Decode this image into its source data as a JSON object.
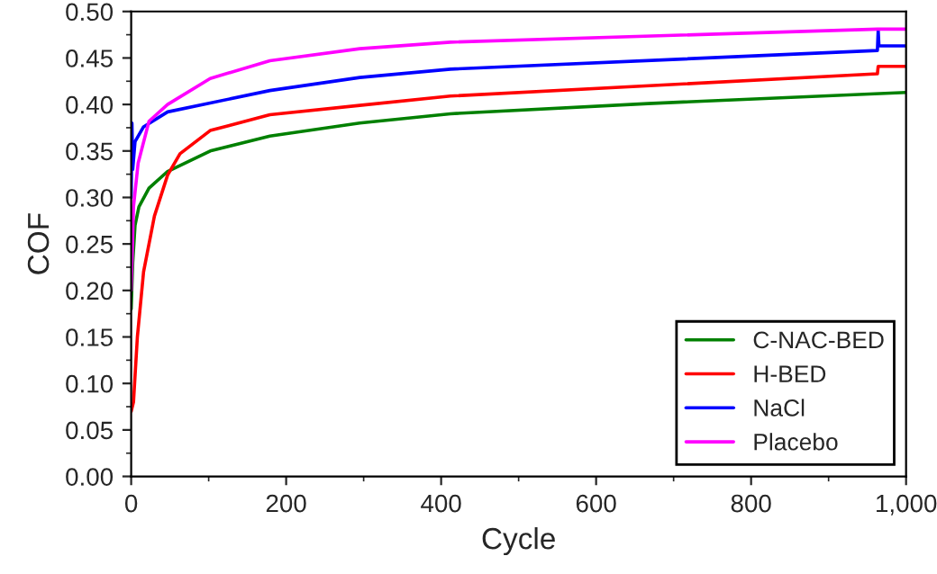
{
  "chart_data": {
    "type": "line",
    "xlabel": "Cycle",
    "ylabel": "COF",
    "xlim": [
      0,
      1000
    ],
    "xticks": [
      0,
      200,
      400,
      600,
      {
        "value": 800,
        "label": "800"
      },
      {
        "value": 1000,
        "label": "1,000"
      }
    ],
    "ylim": [
      0,
      0.5
    ],
    "yticks": [
      {
        "value": 0,
        "label": "0.00"
      },
      {
        "value": 0.05,
        "label": "0.05"
      },
      {
        "value": 0.1,
        "label": "0.10"
      },
      {
        "value": 0.15,
        "label": "0.15"
      },
      {
        "value": 0.2,
        "label": "0.20"
      },
      {
        "value": 0.25,
        "label": "0.25"
      },
      {
        "value": 0.3,
        "label": "0.30"
      },
      {
        "value": 0.35,
        "label": "0.35"
      },
      {
        "value": 0.4,
        "label": "0.40"
      },
      {
        "value": 0.45,
        "label": "0.45"
      },
      {
        "value": 0.5,
        "label": "0.50"
      }
    ],
    "grid": false,
    "legend": "bottom right",
    "marker": "none",
    "line_style": "solid",
    "series": [
      {
        "name": "C-NAC-BED",
        "color": "#008000",
        "x": [
          0,
          2,
          5,
          10,
          23,
          47,
          102,
          179,
          295,
          412,
          667,
          1000
        ],
        "values": [
          0.18,
          0.23,
          0.27,
          0.29,
          0.31,
          0.328,
          0.35,
          0.366,
          0.38,
          0.39,
          0.401,
          0.413
        ]
      },
      {
        "name": "H-BED",
        "color": "#ff0000",
        "x": [
          0,
          3,
          8,
          16,
          30,
          47,
          63,
          102,
          179,
          295,
          412,
          963,
          964,
          1000
        ],
        "values": [
          0.07,
          0.08,
          0.15,
          0.22,
          0.28,
          0.324,
          0.347,
          0.372,
          0.389,
          0.399,
          0.409,
          0.433,
          0.441,
          0.441
        ]
      },
      {
        "name": "NaCl",
        "color": "#0000ff",
        "x": [
          0,
          1,
          2,
          5,
          16,
          47,
          179,
          295,
          412,
          963,
          964,
          965,
          1000
        ],
        "values": [
          0.3,
          0.38,
          0.33,
          0.36,
          0.376,
          0.392,
          0.415,
          0.429,
          0.438,
          0.458,
          0.48,
          0.463,
          0.463
        ]
      },
      {
        "name": "Placebo",
        "color": "#ff00ff",
        "x": [
          0,
          3,
          9,
          23,
          47,
          102,
          179,
          295,
          412,
          963,
          1000
        ],
        "values": [
          0.2,
          0.29,
          0.337,
          0.382,
          0.4,
          0.428,
          0.447,
          0.46,
          0.467,
          0.481,
          0.481
        ]
      }
    ]
  }
}
